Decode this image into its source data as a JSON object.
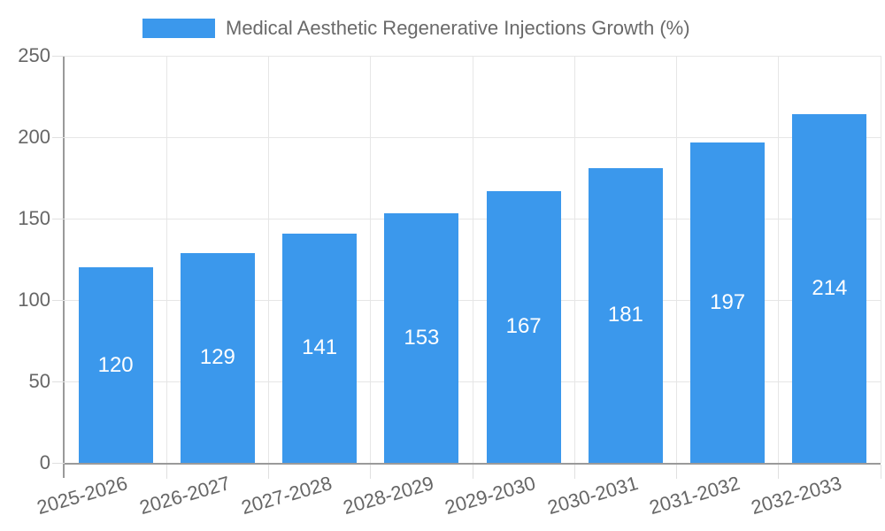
{
  "legend": {
    "label": "Medical Aesthetic Regenerative Injections Growth (%)"
  },
  "chart_data": {
    "type": "bar",
    "title": "Medical Aesthetic Regenerative Injections Growth (%)",
    "categories": [
      "2025-2026",
      "2026-2027",
      "2027-2028",
      "2028-2029",
      "2029-2030",
      "2030-2031",
      "2031-2032",
      "2032-2033"
    ],
    "values": [
      120,
      129,
      141,
      153,
      167,
      181,
      197,
      214
    ],
    "value_labels": [
      "120",
      "129",
      "141",
      "153",
      "167",
      "181",
      "197",
      "214"
    ],
    "xlabel": "",
    "ylabel": "",
    "ylim": [
      0,
      250
    ],
    "yticks": [
      0,
      50,
      100,
      150,
      200,
      250
    ],
    "grid": true,
    "legend_position": "top-center",
    "colors": {
      "bar": "#3b98ec",
      "grid": "#e6e6e6",
      "axis": "#9a9a9a",
      "tick_text": "#666666",
      "value_text": "#ffffff",
      "background": "#ffffff"
    }
  }
}
